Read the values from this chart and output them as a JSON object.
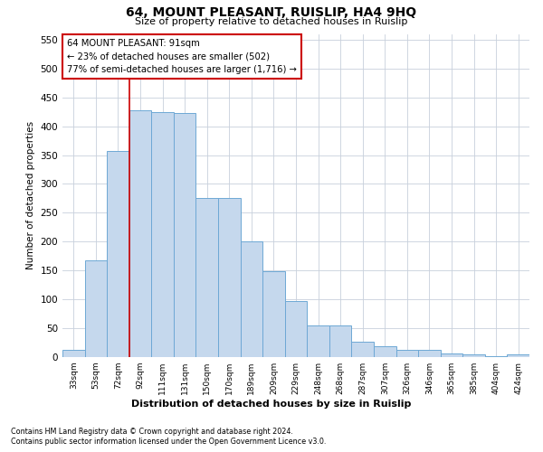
{
  "title": "64, MOUNT PLEASANT, RUISLIP, HA4 9HQ",
  "subtitle": "Size of property relative to detached houses in Ruislip",
  "xlabel": "Distribution of detached houses by size in Ruislip",
  "ylabel": "Number of detached properties",
  "footer1": "Contains HM Land Registry data © Crown copyright and database right 2024.",
  "footer2": "Contains public sector information licensed under the Open Government Licence v3.0.",
  "annotation_title": "64 MOUNT PLEASANT: 91sqm",
  "annotation_line1": "← 23% of detached houses are smaller (502)",
  "annotation_line2": "77% of semi-detached houses are larger (1,716) →",
  "categories": [
    "33sqm",
    "53sqm",
    "72sqm",
    "92sqm",
    "111sqm",
    "131sqm",
    "150sqm",
    "170sqm",
    "189sqm",
    "209sqm",
    "229sqm",
    "248sqm",
    "268sqm",
    "287sqm",
    "307sqm",
    "326sqm",
    "346sqm",
    "365sqm",
    "385sqm",
    "404sqm",
    "424sqm"
  ],
  "values": [
    12,
    168,
    357,
    428,
    425,
    423,
    275,
    275,
    200,
    149,
    97,
    55,
    55,
    27,
    19,
    12,
    12,
    6,
    5,
    2,
    4
  ],
  "bar_color": "#c5d8ed",
  "bar_edge_color": "#6ea8d5",
  "vline_color": "#cc0000",
  "annotation_box_color": "#cc0000",
  "background_color": "#ffffff",
  "grid_color": "#c8d0dc",
  "ylim": [
    0,
    560
  ],
  "yticks": [
    0,
    50,
    100,
    150,
    200,
    250,
    300,
    350,
    400,
    450,
    500,
    550
  ],
  "vline_x": 2.5
}
